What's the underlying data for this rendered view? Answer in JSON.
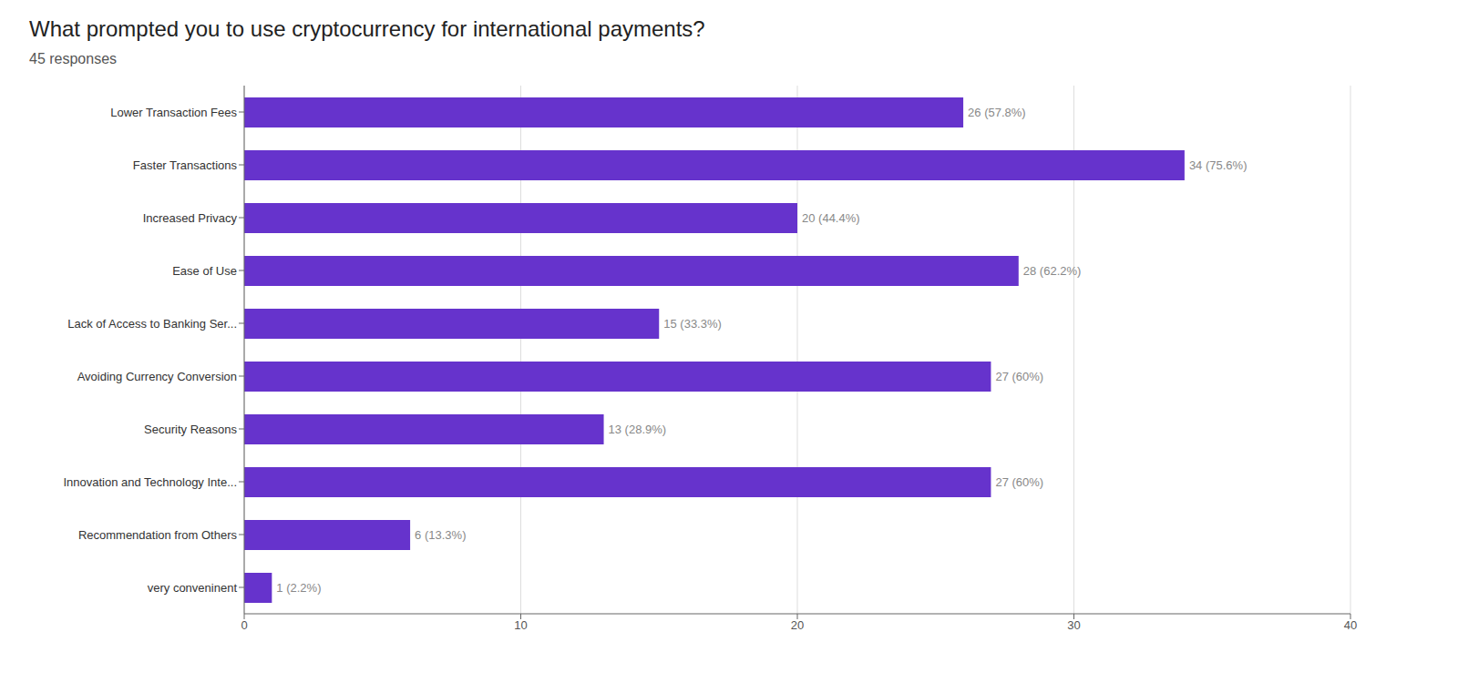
{
  "chart_data": {
    "type": "bar",
    "orientation": "horizontal",
    "title": "What prompted you to use cryptocurrency for international payments?",
    "subtitle": "45 responses",
    "categories": [
      "Lower Transaction Fees",
      "Faster Transactions",
      "Increased Privacy",
      "Ease of Use",
      "Lack of Access to Banking Ser...",
      "Avoiding Currency Conversion",
      "Security Reasons",
      "Innovation and Technology Inte...",
      "Recommendation from Others",
      "very conveninent"
    ],
    "values": [
      26,
      34,
      20,
      28,
      15,
      27,
      13,
      27,
      6,
      1
    ],
    "value_labels": [
      "26 (57.8%)",
      "34 (75.6%)",
      "20 (44.4%)",
      "28 (62.2%)",
      "15 (33.3%)",
      "27 (60%)",
      "13 (28.9%)",
      "27 (60%)",
      "6 (13.3%)",
      "1 (2.2%)"
    ],
    "color": "#6633cc",
    "xlim": [
      0,
      40
    ],
    "xticks": [
      0,
      10,
      20,
      30,
      40
    ],
    "grid": true,
    "data_labels": true
  }
}
